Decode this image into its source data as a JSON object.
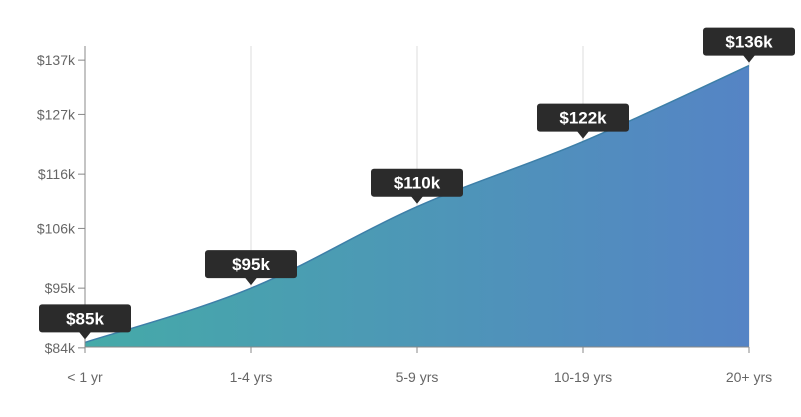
{
  "chart_data": {
    "type": "area",
    "categories": [
      "< 1 yr",
      "1-4 yrs",
      "5-9 yrs",
      "10-19 yrs",
      "20+ yrs"
    ],
    "values": [
      85000,
      95000,
      110000,
      122000,
      136000
    ],
    "data_labels": [
      "$85k",
      "$95k",
      "$110k",
      "$122k",
      "$136k"
    ],
    "y_ticks": [
      84000,
      95000,
      106000,
      116000,
      127000,
      137000
    ],
    "y_tick_labels": [
      "$84k",
      "$95k",
      "$106k",
      "$116k",
      "$127k",
      "$137k"
    ],
    "ylim": [
      79000,
      142000
    ],
    "title": "",
    "xlabel": "",
    "ylabel": "",
    "grid": "vertical",
    "colors": {
      "gradient_start": "#45aaa8",
      "gradient_end": "#5584c5",
      "line": "#3d7fa8",
      "grid": "#dddddd",
      "axis": "#888888",
      "label_bg": "#2b2b2b"
    }
  }
}
